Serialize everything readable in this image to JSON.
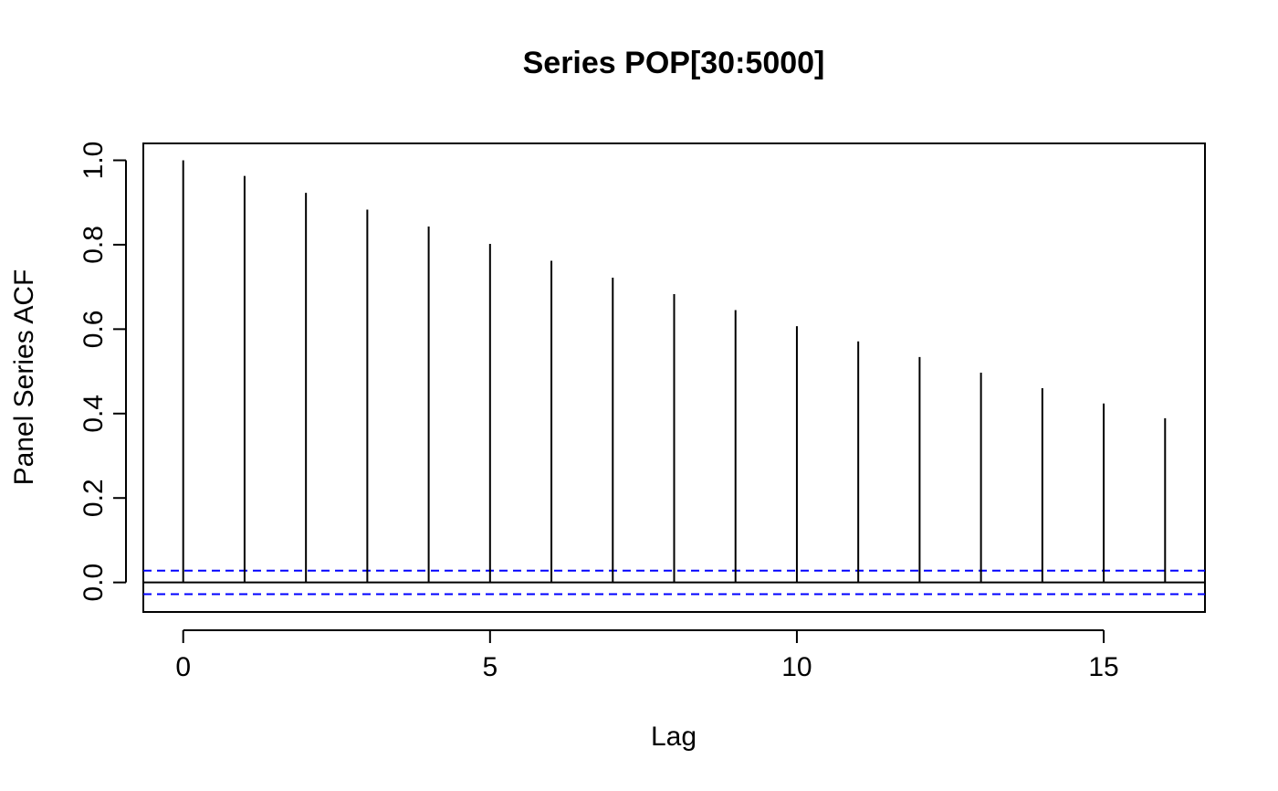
{
  "chart_data": {
    "type": "bar",
    "title": "Series  POP[30:5000]",
    "xlabel": "Lag",
    "ylabel": "Panel Series ACF",
    "x": [
      0,
      1,
      2,
      3,
      4,
      5,
      6,
      7,
      8,
      9,
      10,
      11,
      12,
      13,
      14,
      15,
      16
    ],
    "values": [
      1.0,
      0.963,
      0.923,
      0.883,
      0.843,
      0.802,
      0.762,
      0.722,
      0.683,
      0.645,
      0.607,
      0.571,
      0.534,
      0.497,
      0.46,
      0.424,
      0.389
    ],
    "xlim": [
      -0.65,
      16.65
    ],
    "ylim": [
      -0.07,
      1.04
    ],
    "xticks": [
      0,
      5,
      10,
      15
    ],
    "xtick_labels": [
      "0",
      "5",
      "10",
      "15"
    ],
    "yticks": [
      0.0,
      0.2,
      0.4,
      0.6,
      0.8,
      1.0
    ],
    "ytick_labels": [
      "0.0",
      "0.2",
      "0.4",
      "0.6",
      "0.8",
      "1.0"
    ],
    "confidence_bound": 0.0278,
    "zero_line": true,
    "grid": false,
    "colors": {
      "bars": "#000000",
      "confidence_lines": "#0000ff",
      "frame": "#000000"
    }
  }
}
